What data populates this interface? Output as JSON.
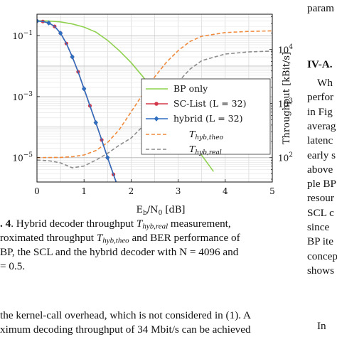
{
  "top_right_text": "param",
  "caption": {
    "line1_prefix": ". 4",
    "line1_text": ". Hybrid decoder throughput ",
    "line1_sym": "T",
    "line1_sub": "hyb,real",
    "line1_end": " measurement,",
    "line2_prefix": "roximated throughput ",
    "line2_sym": "T",
    "line2_sub": "hyb,theo",
    "line2_end": " and BER performance of",
    "line3": "BP, the SCL and the hybrid decoder with N = 4096 and",
    "line4": "= 0.5."
  },
  "body_text": [
    "the kernel-call overhead, which is not considered in (1). A",
    "ximum decoding throughput of 34 Mbit/s can be achieved"
  ],
  "right_column": {
    "heading": "IV-A.",
    "lines": [
      "Wh",
      "perfor",
      "in Fig",
      "averag",
      "latenc",
      "early s",
      "above",
      "ple BP",
      "resour",
      "SCL  c",
      "since",
      "BP ite",
      "concep",
      "shows"
    ],
    "bottom": "In"
  },
  "chart_data": {
    "type": "line",
    "xlabel": "E_b/N_0 [dB]",
    "ylabel_right": "Throughput [kBit/s]",
    "xlim": [
      0,
      5
    ],
    "xticks": [
      0,
      1,
      2,
      3,
      4,
      5
    ],
    "ylim_left_log10": [
      -5.8,
      -0.3
    ],
    "yticks_left": [
      "10^{-1}",
      "10^{-3}",
      "10^{-5}"
    ],
    "yticks_left_exp": [
      -1,
      -3,
      -5
    ],
    "ylim_right_log10": [
      1.55,
      4.65
    ],
    "yticks_right": [
      "10^2",
      "10^3",
      "10^4"
    ],
    "yticks_right_exp": [
      2,
      3,
      4
    ],
    "grid": true,
    "legend_position": "center-right",
    "series": [
      {
        "name": "BP only",
        "color": "#8fd14f",
        "style": "solid",
        "axis": "left",
        "x": [
          0,
          0.25,
          0.5,
          0.75,
          1.0,
          1.25,
          1.5,
          1.75,
          2.0,
          2.25,
          2.5,
          2.75,
          3.0,
          3.25,
          3.5,
          3.75
        ],
        "y": [
          0.31,
          0.3,
          0.28,
          0.24,
          0.19,
          0.13,
          0.07,
          0.032,
          0.013,
          0.0045,
          0.0014,
          0.00045,
          0.00013,
          4e-05,
          1.2e-05,
          3.5e-06
        ]
      },
      {
        "name": "SC-List (L = 32)",
        "color": "#d23a4b",
        "style": "solid-marker",
        "marker": "circle",
        "axis": "left",
        "x": [
          0,
          0.125,
          0.25,
          0.375,
          0.5,
          0.625,
          0.75,
          0.875,
          1.0,
          1.125,
          1.25,
          1.375,
          1.5,
          1.625,
          1.75,
          1.875
        ],
        "y": [
          0.3,
          0.29,
          0.26,
          0.2,
          0.12,
          0.055,
          0.02,
          0.0065,
          0.0018,
          0.0005,
          0.00014,
          3.8e-05,
          1e-05,
          2.8e-06,
          8e-07,
          2e-07
        ]
      },
      {
        "name": "hybrid (L = 32)",
        "color": "#2f6fc0",
        "style": "solid-marker",
        "marker": "diamond",
        "axis": "left",
        "x": [
          0,
          0.125,
          0.25,
          0.375,
          0.5,
          0.625,
          0.75,
          0.875,
          1.0,
          1.125,
          1.25,
          1.375,
          1.5,
          1.625,
          1.75,
          1.875
        ],
        "y": [
          0.3,
          0.29,
          0.26,
          0.2,
          0.12,
          0.055,
          0.02,
          0.0065,
          0.0018,
          0.0005,
          0.00014,
          3.8e-05,
          1e-05,
          2.8e-06,
          8e-07,
          2e-07
        ]
      },
      {
        "name": "T_{hyb,theo}",
        "color": "#f08a3c",
        "style": "dashed",
        "axis": "right",
        "x": [
          0,
          0.5,
          0.75,
          1.0,
          1.25,
          1.5,
          1.75,
          2.0,
          2.25,
          2.5,
          2.75,
          3.0,
          3.25,
          3.5,
          4.0,
          4.5,
          5.0
        ],
        "y": [
          100,
          101,
          104,
          112,
          135,
          190,
          330,
          700,
          1500,
          3100,
          5800,
          9500,
          14000,
          17500,
          20500,
          21500,
          22000
        ]
      },
      {
        "name": "T_{hyb,real}",
        "color": "#8c8c8c",
        "style": "dashed",
        "axis": "right",
        "x": [
          0,
          0.25,
          0.5,
          0.75,
          1.0,
          1.25,
          1.5,
          1.75,
          2.0,
          2.25,
          2.5,
          2.75,
          3.0,
          3.25,
          3.5,
          4.0,
          4.5,
          5.0
        ],
        "y": [
          90,
          88,
          80,
          65,
          70,
          90,
          120,
          170,
          230,
          380,
          700,
          1300,
          2500,
          4300,
          6200,
          8200,
          9000,
          9300
        ]
      }
    ]
  }
}
